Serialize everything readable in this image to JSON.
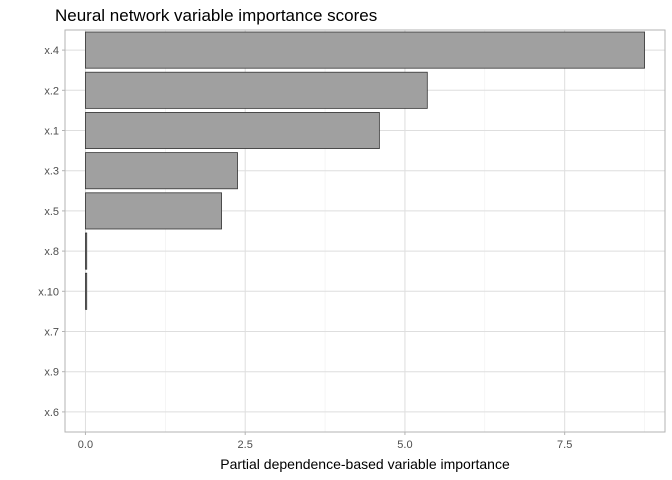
{
  "chart_data": {
    "type": "bar",
    "orientation": "horizontal",
    "title": "Neural network variable importance scores",
    "xlabel": "Partial dependence-based variable importance",
    "ylabel": "",
    "categories": [
      "x.4",
      "x.2",
      "x.1",
      "x.3",
      "x.5",
      "x.8",
      "x.10",
      "x.7",
      "x.9",
      "x.6"
    ],
    "values": [
      8.75,
      5.35,
      4.6,
      2.38,
      2.13,
      0.02,
      0.02,
      0.0,
      0.0,
      0.0
    ],
    "xlim": [
      -0.32,
      9.07
    ],
    "x_ticks": [
      0,
      2.5,
      5,
      7.5
    ],
    "x_tick_labels": [
      "0.0",
      "2.5",
      "5.0",
      "7.5"
    ],
    "grid": true,
    "legend": "none",
    "colors": {
      "bar_fill": "#a0a0a0",
      "bar_stroke": "#333333",
      "grid_major": "#dedede",
      "grid_minor": "#efefef",
      "panel_border": "#b3b3b3",
      "tick_label": "#4d4d4d"
    }
  }
}
